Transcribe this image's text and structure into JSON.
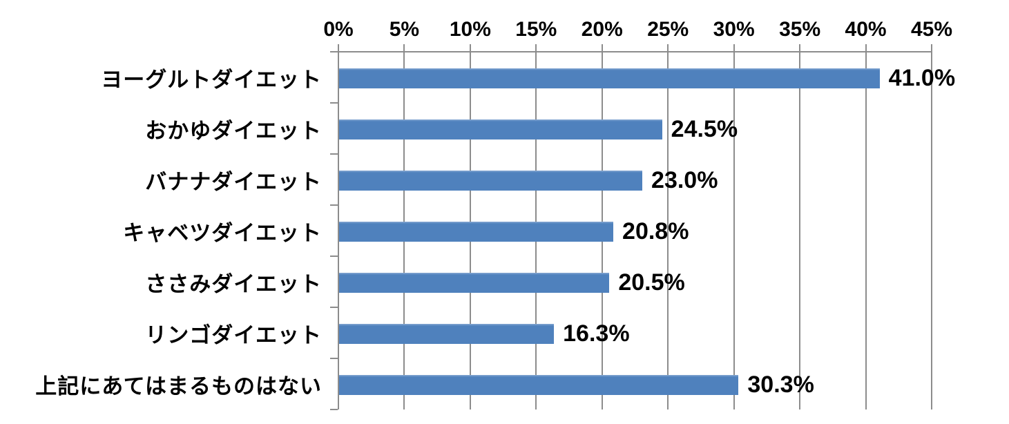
{
  "chart_data": {
    "type": "bar",
    "orientation": "horizontal",
    "title": "",
    "categories": [
      "ヨーグルトダイエット",
      "おかゆダイエット",
      "バナナダイエット",
      "キャベツダイエット",
      "ささみダイエット",
      "リンゴダイエット",
      "上記にあてはまるものはない"
    ],
    "values": [
      41.0,
      24.5,
      23.0,
      20.8,
      20.5,
      16.3,
      30.3
    ],
    "value_labels": [
      "41.0%",
      "24.5%",
      "23.0%",
      "20.8%",
      "20.5%",
      "16.3%",
      "30.3%"
    ],
    "axis": {
      "position": "top",
      "min": 0,
      "max": 45,
      "step": 5,
      "tick_labels": [
        "0%",
        "5%",
        "10%",
        "15%",
        "20%",
        "25%",
        "30%",
        "35%",
        "40%",
        "45%"
      ]
    },
    "grid": true,
    "legend": "none",
    "colors": {
      "bar": "#4f81bd",
      "bar_edge": "#87a9d2",
      "gridline": "#8c8c8c",
      "axis": "#8c8c8c",
      "text": "#000000",
      "background": "#ffffff"
    }
  }
}
